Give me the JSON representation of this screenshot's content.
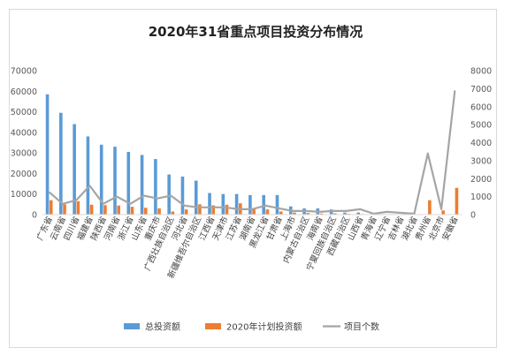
{
  "chart_data": {
    "type": "bar",
    "title": "2020年31省重点项目投资分布情况",
    "categories": [
      "广东省",
      "云南省",
      "四川省",
      "福建省",
      "陕西省",
      "河南省",
      "浙江省",
      "山东省",
      "重庆市",
      "广西壮族自治区",
      "河北省",
      "新疆维吾尔自治区",
      "江西省",
      "天津市",
      "江苏省",
      "湖南省",
      "黑龙江省",
      "甘肃省",
      "上海市",
      "内蒙古自治区",
      "海南省",
      "宁夏回族自治区",
      "西藏自治区",
      "山西省",
      "青海省",
      "辽宁省",
      "吉林省",
      "湖北省",
      "贵州省",
      "北京市",
      "安徽省"
    ],
    "y_left": {
      "ylim": [
        0,
        70000
      ],
      "ticks": [
        "0",
        "10000",
        "20000",
        "30000",
        "40000",
        "50000",
        "60000",
        "70000"
      ]
    },
    "y_right": {
      "ylim": [
        0,
        8000
      ],
      "ticks": [
        "0",
        "1000",
        "2000",
        "3000",
        "4000",
        "5000",
        "6000",
        "7000",
        "8000"
      ]
    },
    "series": [
      {
        "name": "总投资额",
        "type": "bar",
        "axis": "left",
        "color": "#5b9bd5",
        "values": [
          58500,
          49500,
          44000,
          38000,
          34000,
          33000,
          30500,
          29000,
          27000,
          19500,
          18500,
          16500,
          10500,
          10000,
          10000,
          9500,
          9500,
          9500,
          4000,
          3000,
          3000,
          2500,
          1000,
          1000,
          0,
          0,
          0,
          0,
          0,
          0,
          0
        ]
      },
      {
        "name": "2020年计划投资额",
        "type": "bar",
        "axis": "left",
        "color": "#ed7d31",
        "values": [
          7000,
          5000,
          6500,
          4800,
          4600,
          4400,
          3800,
          3300,
          3000,
          1500,
          2500,
          5000,
          4500,
          4800,
          5500,
          3000,
          2500,
          1500,
          1000,
          800,
          500,
          600,
          400,
          300,
          0,
          0,
          0,
          0,
          7000,
          2000,
          13000
        ]
      },
      {
        "name": "项目个数",
        "type": "line",
        "axis": "right",
        "color": "#a5a5a5",
        "values": [
          1250,
          600,
          800,
          1600,
          600,
          1000,
          600,
          1050,
          900,
          1050,
          500,
          400,
          400,
          400,
          300,
          300,
          500,
          350,
          200,
          200,
          150,
          200,
          200,
          300,
          50,
          150,
          100,
          50,
          3400,
          300,
          6900
        ]
      }
    ],
    "legend": {
      "position": "bottom",
      "items": [
        "总投资额",
        "2020年计划投资额",
        "项目个数"
      ]
    }
  }
}
